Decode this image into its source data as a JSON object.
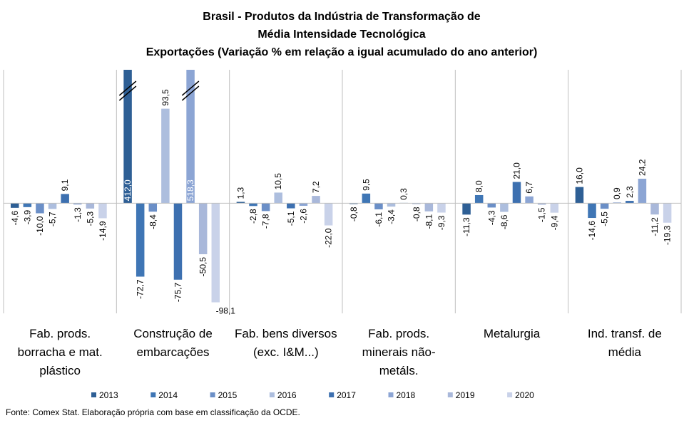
{
  "chart_data": {
    "type": "bar",
    "title": [
      "Brasil - Produtos da Indústria de Transformação de",
      "Média Intensidade Tecnológica",
      "Exportações (Variação % em relação a igual acumulado do ano anterior)"
    ],
    "categories": [
      "Fab. prods. borracha e mat. plástico",
      "Construção de embarcações",
      "Fab. bens diversos (exc. I&M...)",
      "Fab. prods. minerais não-metáls.",
      "Metalurgia",
      "Ind. transf. de média"
    ],
    "series": [
      {
        "name": "2013",
        "color": "#2e5f95",
        "values": [
          -4.6,
          412.0,
          1.3,
          -0.8,
          -11.3,
          16.0
        ],
        "value_labels": [
          "-4,6",
          "412,0",
          "1,3",
          "-0,8",
          "-11,3",
          "16,0"
        ]
      },
      {
        "name": "2014",
        "color": "#3f76b5",
        "values": [
          -3.9,
          -72.7,
          -2.8,
          9.5,
          8.0,
          -14.6
        ],
        "value_labels": [
          "-3,9",
          "-72,7",
          "-2,8",
          "9,5",
          "8,0",
          "-14,6"
        ]
      },
      {
        "name": "2015",
        "color": "#6b8fc7",
        "values": [
          -10.0,
          -8.4,
          -7.8,
          -6.1,
          -4.3,
          -5.5
        ],
        "value_labels": [
          "-10,0",
          "-8,4",
          "-7,8",
          "-6,1",
          "-4,3",
          "-5,5"
        ]
      },
      {
        "name": "2016",
        "color": "#adbede",
        "values": [
          -5.7,
          93.5,
          10.5,
          -3.4,
          -8.6,
          0.9
        ],
        "value_labels": [
          "-5,7",
          "93,5",
          "10,5",
          "-3,4",
          "-8,6",
          "0,9"
        ]
      },
      {
        "name": "2017",
        "color": "#3d70b0",
        "values": [
          9.1,
          -75.7,
          -5.1,
          0.3,
          21.0,
          2.3
        ],
        "value_labels": [
          "9,1",
          "-75,7",
          "-5,1",
          "0,3",
          "21,0",
          "2,3"
        ]
      },
      {
        "name": "2018",
        "color": "#8ca5d4",
        "values": [
          -1.3,
          518.3,
          -2.6,
          -0.8,
          6.7,
          24.2
        ],
        "value_labels": [
          "-1,3",
          "518,3",
          "-2,6",
          "-0,8",
          "6,7",
          "24,2"
        ]
      },
      {
        "name": "2019",
        "color": "#a9b8da",
        "values": [
          -5.3,
          -50.5,
          7.2,
          -8.1,
          -1.5,
          -11.2
        ],
        "value_labels": [
          "-5,3",
          "-50,5",
          "7,2",
          "-8,1",
          "-1,5",
          "-11,2"
        ]
      },
      {
        "name": "2020",
        "color": "#c9d2e9",
        "values": [
          -14.9,
          -98.1,
          -22.0,
          -9.3,
          -9.4,
          -19.3
        ],
        "value_labels": [
          "-14,9",
          "-98,1",
          "-22,0",
          "-9,3",
          "-9,4",
          "-19,3"
        ]
      }
    ],
    "ylim": [
      -109,
      132
    ],
    "source": "Fonte: Comex Stat. Elaboração própria com base em classificação da OCDE."
  }
}
